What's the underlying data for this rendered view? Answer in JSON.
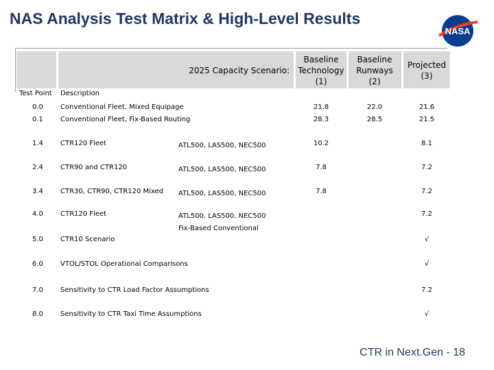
{
  "header": {
    "title": "NAS Analysis Test Matrix & High-Level Results",
    "logo": "NASA"
  },
  "table": {
    "scenario_label": "2025 Capacity Scenario:",
    "columns": [
      "Baseline Technology (1)",
      "Baseline Runways (2)",
      "Projected (3)"
    ],
    "subheaders": [
      "Test Point",
      "Description"
    ],
    "rows": [
      {
        "test_point": "0.0",
        "description": "Conventional Fleet, Mixed Equipage",
        "results": [
          "21.8",
          "22.0",
          "21.6"
        ]
      },
      {
        "test_point": "0.1",
        "description": "Conventional Fleet, Fix-Based Routing",
        "results": [
          "28.3",
          "28.5",
          "21.5"
        ]
      },
      {
        "test_point": "1.4",
        "description": "CTR120 Fleet",
        "airports": [
          "ATL500, LAS500, NEC500"
        ],
        "results": [
          "10.2",
          null,
          "8.1"
        ]
      },
      {
        "test_point": "2.4",
        "description": "CTR90 and CTR120",
        "airports": [
          "ATL500, LAS500, NEC500"
        ],
        "results": [
          "7.8",
          null,
          "7.2"
        ]
      },
      {
        "test_point": "3.4",
        "description": "CTR30, CTR90, CTR120 Mixed",
        "airports": [
          "ATL500, LAS500, NEC500"
        ],
        "results": [
          "7.8",
          null,
          "7.2"
        ]
      },
      {
        "test_point": "4.0",
        "description": "CTR120 Fleet",
        "airports": [
          "ATL500, LAS500, NEC500",
          "Fix-Based Conventional"
        ],
        "results": [
          null,
          null,
          "7.2"
        ]
      },
      {
        "test_point": "5.0",
        "description": "CTR10 Scenario",
        "results": [
          null,
          null,
          "√"
        ]
      },
      {
        "test_point": "6.0",
        "description": "VTOL/STOL Operational Comparisons",
        "results": [
          null,
          null,
          "√"
        ]
      },
      {
        "test_point": "7.0",
        "description": "Sensitivity  to CTR Load Factor Assumptions",
        "results": [
          null,
          null,
          "7.2"
        ]
      },
      {
        "test_point": "8.0",
        "description": "Sensitivity to CTR Taxi Time Assumptions",
        "results": [
          null,
          null,
          "√"
        ]
      }
    ]
  },
  "footer": {
    "text": "CTR in Next.Gen  - 18"
  }
}
